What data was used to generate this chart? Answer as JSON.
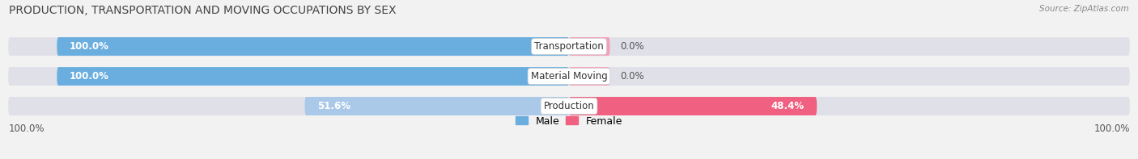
{
  "title": "PRODUCTION, TRANSPORTATION AND MOVING OCCUPATIONS BY SEX",
  "source": "Source: ZipAtlas.com",
  "categories": [
    "Transportation",
    "Material Moving",
    "Production"
  ],
  "male_values": [
    100.0,
    100.0,
    51.6
  ],
  "female_values": [
    0.0,
    0.0,
    48.4
  ],
  "male_color_dark": "#6aaee0",
  "male_color_light": "#aac8e8",
  "female_color_dark": "#f06080",
  "female_color_light": "#f4a0b8",
  "bg_color": "#f2f2f2",
  "bar_bg_color": "#e0e0e8",
  "legend_male": "Male",
  "legend_female": "Female",
  "figsize": [
    14.06,
    1.97
  ],
  "dpi": 100,
  "xlim": [
    -110,
    110
  ],
  "bar_height": 0.62,
  "bar_gap": 0.38
}
